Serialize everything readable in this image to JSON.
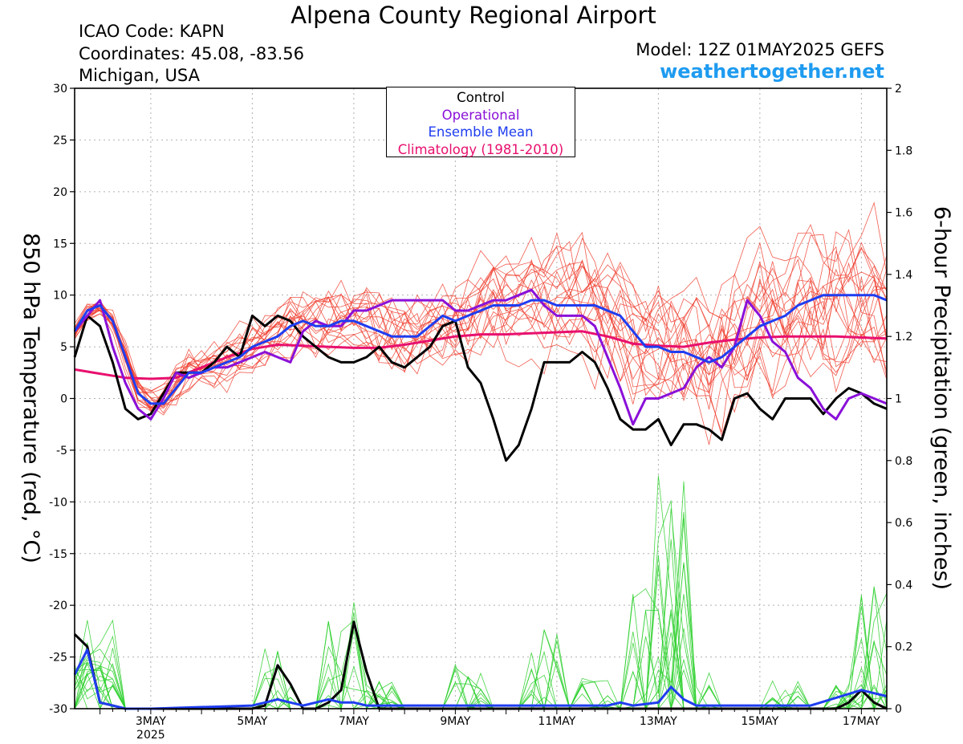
{
  "header": {
    "title": "Alpena County Regional Airport",
    "icao": "ICAO Code: KAPN",
    "coordinates": "Coordinates: 45.08, -83.56",
    "region": "Michigan, USA",
    "model": "Model: 12Z 01MAY2025 GEFS",
    "website": "weathertogether.net"
  },
  "legend": {
    "entries": [
      {
        "label": "Control",
        "color": "#000000"
      },
      {
        "label": "Operational",
        "color": "#8a10d8"
      },
      {
        "label": "Ensemble Mean",
        "color": "#1f3df0"
      },
      {
        "label": "Climatology (1981-2010)",
        "color": "#e8106e"
      }
    ]
  },
  "colors": {
    "member_temp": "#f04030",
    "member_precip": "#30d030",
    "control": "#000000",
    "operational": "#8a10d8",
    "mean": "#1f3df0",
    "climatology": "#e8106e",
    "grid": "#b0b0b0"
  },
  "chart_data": {
    "type": "line",
    "ylabel": "850 hPa Temperature (red, °C)",
    "y2label": "6-hour Precipitation (green, inches)",
    "ylim": [
      -30,
      30
    ],
    "y2lim": [
      0,
      2
    ],
    "yticks": [
      -30,
      -25,
      -20,
      -15,
      -10,
      -5,
      0,
      5,
      10,
      15,
      20,
      25,
      30
    ],
    "y2ticks": [
      0,
      0.2,
      0.4,
      0.6,
      0.8,
      1,
      1.2,
      1.4,
      1.6,
      1.8,
      2
    ],
    "xlim_days": [
      1.5,
      17.5
    ],
    "x_unit": "days of May 2025",
    "xticks": [
      {
        "day": 3,
        "label": "3MAY",
        "sub": "2025"
      },
      {
        "day": 5,
        "label": "5MAY"
      },
      {
        "day": 7,
        "label": "7MAY"
      },
      {
        "day": 9,
        "label": "9MAY"
      },
      {
        "day": 11,
        "label": "11MAY"
      },
      {
        "day": 13,
        "label": "13MAY"
      },
      {
        "day": 15,
        "label": "15MAY"
      },
      {
        "day": 17,
        "label": "17MAY"
      }
    ],
    "grid": true,
    "series": [
      {
        "name": "Control",
        "axis": "temperature",
        "x": [
          1.5,
          1.75,
          2,
          2.25,
          2.5,
          2.75,
          3,
          3.25,
          3.5,
          3.75,
          4,
          4.25,
          4.5,
          4.75,
          5,
          5.25,
          5.5,
          5.75,
          6,
          6.25,
          6.5,
          6.75,
          7,
          7.25,
          7.5,
          7.75,
          8,
          8.25,
          8.5,
          8.75,
          9,
          9.25,
          9.5,
          9.75,
          10,
          10.25,
          10.5,
          10.75,
          11,
          11.25,
          11.5,
          11.75,
          12,
          12.25,
          12.5,
          12.75,
          13,
          13.25,
          13.5,
          13.75,
          14,
          14.25,
          14.5,
          14.75,
          15,
          15.25,
          15.5,
          15.75,
          16,
          16.25,
          16.5,
          16.75,
          17,
          17.25,
          17.5
        ],
        "y": [
          4,
          8,
          7,
          3.5,
          -1,
          -2,
          -1.5,
          0.5,
          2.5,
          2.5,
          2.5,
          3.5,
          5,
          4,
          8,
          7,
          8,
          7.5,
          6,
          5,
          4,
          3.5,
          3.5,
          4,
          5,
          3.5,
          3,
          4,
          5,
          7,
          7.5,
          3,
          1.5,
          -2,
          -6,
          -4.5,
          -1,
          3.5,
          3.5,
          3.5,
          4.5,
          3.5,
          1,
          -2,
          -3,
          -3,
          -2,
          -4.5,
          -2.5,
          -2.5,
          -3,
          -4,
          0,
          0.5,
          -1,
          -2,
          0,
          0,
          0,
          -1.5,
          0,
          1,
          0.5,
          -0.5,
          -1
        ]
      },
      {
        "name": "Operational",
        "axis": "temperature",
        "x": [
          1.5,
          1.75,
          2,
          2.25,
          2.5,
          2.75,
          3,
          3.25,
          3.5,
          3.75,
          4,
          4.25,
          4.5,
          4.75,
          5,
          5.25,
          5.5,
          5.75,
          6,
          6.25,
          6.5,
          6.75,
          7,
          7.25,
          7.5,
          7.75,
          8,
          8.25,
          8.5,
          8.75,
          9,
          9.25,
          9.5,
          9.75,
          10,
          10.25,
          10.5,
          10.75,
          11,
          11.25,
          11.5,
          11.75,
          12,
          12.25,
          12.5,
          12.75,
          13,
          13.25,
          13.5,
          13.75,
          14,
          14.25,
          14.5,
          14.75,
          15,
          15.25,
          15.5,
          15.75,
          16,
          16.25,
          16.5,
          16.75,
          17,
          17.25,
          17.5
        ],
        "y": [
          6.5,
          8,
          9.5,
          5,
          1.5,
          -1,
          -2,
          0,
          2.5,
          2,
          2.5,
          3,
          3,
          3.5,
          4,
          4.5,
          4,
          3.5,
          6.5,
          7.5,
          7,
          7,
          8.5,
          8.5,
          9,
          9.5,
          9.5,
          9.5,
          9.5,
          9.5,
          8.5,
          8.5,
          9,
          9.5,
          9.5,
          10,
          10.5,
          9,
          8,
          8,
          8,
          7,
          4,
          1,
          -2.5,
          0,
          0,
          0.5,
          1,
          3,
          4,
          3,
          5,
          9.5,
          8,
          5.5,
          4.5,
          2,
          1,
          -1,
          -2,
          0,
          0.5,
          0,
          -0.5
        ]
      },
      {
        "name": "Ensemble Mean",
        "axis": "temperature",
        "x": [
          1.5,
          1.75,
          2,
          2.25,
          2.5,
          2.75,
          3,
          3.25,
          3.5,
          3.75,
          4,
          4.25,
          4.5,
          4.75,
          5,
          5.25,
          5.5,
          5.75,
          6,
          6.25,
          6.5,
          6.75,
          7,
          7.25,
          7.5,
          7.75,
          8,
          8.25,
          8.5,
          8.75,
          9,
          9.25,
          9.5,
          9.75,
          10,
          10.25,
          10.5,
          10.75,
          11,
          11.25,
          11.5,
          11.75,
          12,
          12.25,
          12.5,
          12.75,
          13,
          13.25,
          13.5,
          13.75,
          14,
          14.25,
          14.5,
          14.75,
          15,
          15.25,
          15.5,
          15.75,
          16,
          16.25,
          16.5,
          16.75,
          17,
          17.25,
          17.5
        ],
        "y": [
          6.5,
          8.5,
          9,
          7.5,
          4,
          0.5,
          -0.5,
          -0.5,
          1,
          2.5,
          2.5,
          3,
          3.5,
          4,
          5,
          5.5,
          6,
          7,
          7.5,
          7,
          7,
          7.5,
          7.5,
          7,
          6.5,
          6,
          6,
          6,
          7,
          8,
          7.5,
          8,
          8.5,
          9,
          9,
          9,
          9.5,
          9.5,
          9,
          9,
          9,
          9,
          8.5,
          8,
          6.5,
          5,
          5,
          4.5,
          4.5,
          4,
          3.5,
          4,
          5,
          6,
          7,
          7.5,
          8,
          9,
          9.5,
          10,
          10,
          10,
          10,
          10,
          9.5
        ]
      },
      {
        "name": "Climatology (1981-2010)",
        "axis": "temperature",
        "x": [
          1.5,
          2,
          2.5,
          3,
          3.5,
          4,
          4.5,
          5,
          5.5,
          6,
          6.5,
          7,
          7.5,
          8,
          8.5,
          9,
          9.5,
          10,
          10.5,
          11,
          11.5,
          12,
          12.5,
          13,
          13.5,
          14,
          14.5,
          15,
          15.5,
          16,
          16.5,
          17,
          17.5
        ],
        "y": [
          2.8,
          2.4,
          2.0,
          1.9,
          2.0,
          3.0,
          4.0,
          4.8,
          5.2,
          5.1,
          5.0,
          4.9,
          4.9,
          5.2,
          5.6,
          6.0,
          6.2,
          6.2,
          6.3,
          6.4,
          6.5,
          6.0,
          5.3,
          5.1,
          5.0,
          5.4,
          5.7,
          5.9,
          6.0,
          6.0,
          6.0,
          5.9,
          5.8
        ]
      },
      {
        "name": "Control",
        "axis": "precipitation",
        "x": [
          1.5,
          1.75,
          2,
          2.25,
          2.5,
          3,
          5,
          5.25,
          5.5,
          5.75,
          6,
          6.25,
          6.5,
          6.75,
          7,
          7.25,
          7.5,
          16.5,
          16.75,
          17,
          17.25,
          17.5
        ],
        "y": [
          0.24,
          0.2,
          0.02,
          0.01,
          0,
          0,
          0,
          0.01,
          0.14,
          0.08,
          0,
          0,
          0.02,
          0.06,
          0.28,
          0.12,
          0,
          0,
          0.02,
          0.06,
          0.02,
          0
        ]
      },
      {
        "name": "Ensemble Mean",
        "axis": "precipitation",
        "x": [
          1.5,
          1.75,
          2,
          2.25,
          2.5,
          3,
          5,
          5.25,
          5.5,
          5.75,
          6,
          6.25,
          6.5,
          6.75,
          7,
          7.25,
          7.5,
          9,
          10,
          11,
          12,
          12.25,
          12.5,
          13,
          13.25,
          13.5,
          13.75,
          14,
          15,
          16,
          17,
          17.25,
          17.5
        ],
        "y": [
          0.11,
          0.19,
          0.02,
          0.01,
          0,
          0,
          0.01,
          0.02,
          0.03,
          0.02,
          0.01,
          0.02,
          0.03,
          0.02,
          0.02,
          0.01,
          0.01,
          0.01,
          0.01,
          0.01,
          0.01,
          0.02,
          0.01,
          0.02,
          0.07,
          0.03,
          0.01,
          0.01,
          0.01,
          0.01,
          0.06,
          0.05,
          0.04
        ]
      }
    ]
  }
}
